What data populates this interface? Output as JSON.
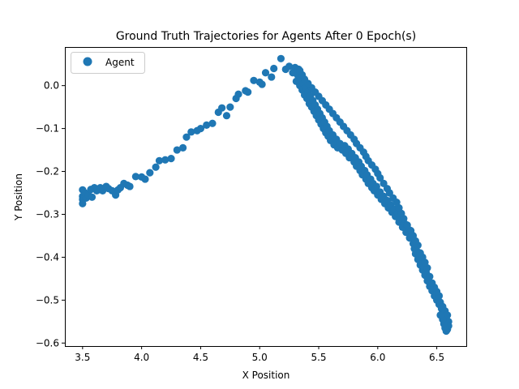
{
  "chart_data": {
    "type": "scatter",
    "title": "Ground Truth Trajectories for Agents After 0 Epoch(s)",
    "xlabel": "X Position",
    "ylabel": "Y Position",
    "xlim": [
      3.35,
      6.75
    ],
    "ylim": [
      -0.607,
      0.09
    ],
    "xticks": [
      3.5,
      4.0,
      4.5,
      5.0,
      5.5,
      6.0,
      6.5
    ],
    "xtick_labels": [
      "3.5",
      "4.0",
      "4.5",
      "5.0",
      "5.5",
      "6.0",
      "6.5"
    ],
    "yticks": [
      0.0,
      -0.1,
      -0.2,
      -0.3,
      -0.4,
      -0.5,
      -0.6
    ],
    "ytick_labels": [
      "0.0",
      "−0.1",
      "−0.2",
      "−0.3",
      "−0.4",
      "−0.5",
      "−0.6"
    ],
    "grid": false,
    "legend": {
      "position": "top-left",
      "entries": [
        "Agent"
      ]
    },
    "series": [
      {
        "name": "Agent",
        "color": "#1f77b4",
        "marker": "circle",
        "points": [
          [
            3.5,
            -0.243
          ],
          [
            3.5,
            -0.258
          ],
          [
            3.5,
            -0.265
          ],
          [
            3.5,
            -0.275
          ],
          [
            3.52,
            -0.25
          ],
          [
            3.53,
            -0.262
          ],
          [
            3.55,
            -0.255
          ],
          [
            3.57,
            -0.242
          ],
          [
            3.58,
            -0.26
          ],
          [
            3.6,
            -0.238
          ],
          [
            3.62,
            -0.245
          ],
          [
            3.65,
            -0.238
          ],
          [
            3.67,
            -0.245
          ],
          [
            3.7,
            -0.235
          ],
          [
            3.72,
            -0.24
          ],
          [
            3.75,
            -0.245
          ],
          [
            3.78,
            -0.255
          ],
          [
            3.8,
            -0.243
          ],
          [
            3.82,
            -0.238
          ],
          [
            3.85,
            -0.228
          ],
          [
            3.88,
            -0.232
          ],
          [
            3.9,
            -0.235
          ],
          [
            3.95,
            -0.212
          ],
          [
            4.0,
            -0.213
          ],
          [
            4.03,
            -0.218
          ],
          [
            4.07,
            -0.203
          ],
          [
            4.12,
            -0.19
          ],
          [
            4.15,
            -0.175
          ],
          [
            4.2,
            -0.173
          ],
          [
            4.25,
            -0.17
          ],
          [
            4.3,
            -0.15
          ],
          [
            4.35,
            -0.145
          ],
          [
            4.38,
            -0.12
          ],
          [
            4.42,
            -0.108
          ],
          [
            4.47,
            -0.105
          ],
          [
            4.5,
            -0.1
          ],
          [
            4.55,
            -0.092
          ],
          [
            4.6,
            -0.088
          ],
          [
            4.65,
            -0.062
          ],
          [
            4.68,
            -0.052
          ],
          [
            4.72,
            -0.07
          ],
          [
            4.75,
            -0.05
          ],
          [
            4.8,
            -0.03
          ],
          [
            4.82,
            -0.02
          ],
          [
            4.88,
            -0.012
          ],
          [
            4.9,
            -0.015
          ],
          [
            4.95,
            0.012
          ],
          [
            5.0,
            0.008
          ],
          [
            5.02,
            0.003
          ],
          [
            5.05,
            0.03
          ],
          [
            5.1,
            0.02
          ],
          [
            5.12,
            0.04
          ],
          [
            5.18,
            0.063
          ],
          [
            5.22,
            0.038
          ],
          [
            5.25,
            0.045
          ],
          [
            5.28,
            0.03
          ],
          [
            5.3,
            0.042
          ],
          [
            5.31,
            0.01
          ],
          [
            5.32,
            0.025
          ],
          [
            5.33,
            0.038
          ],
          [
            5.34,
            0.0
          ],
          [
            5.35,
            0.015
          ],
          [
            5.36,
            -0.01
          ],
          [
            5.37,
            0.005
          ],
          [
            5.38,
            -0.022
          ],
          [
            5.39,
            -0.005
          ],
          [
            5.4,
            -0.03
          ],
          [
            5.41,
            -0.015
          ],
          [
            5.42,
            -0.042
          ],
          [
            5.43,
            -0.025
          ],
          [
            5.44,
            -0.05
          ],
          [
            5.45,
            -0.035
          ],
          [
            5.46,
            -0.06
          ],
          [
            5.47,
            -0.045
          ],
          [
            5.48,
            -0.07
          ],
          [
            5.49,
            -0.055
          ],
          [
            5.5,
            -0.08
          ],
          [
            5.51,
            -0.065
          ],
          [
            5.52,
            -0.09
          ],
          [
            5.53,
            -0.075
          ],
          [
            5.54,
            -0.1
          ],
          [
            5.55,
            -0.085
          ],
          [
            5.56,
            -0.11
          ],
          [
            5.57,
            -0.095
          ],
          [
            5.58,
            -0.118
          ],
          [
            5.59,
            -0.105
          ],
          [
            5.6,
            -0.128
          ],
          [
            5.62,
            -0.115
          ],
          [
            5.63,
            -0.138
          ],
          [
            5.65,
            -0.125
          ],
          [
            5.66,
            -0.145
          ],
          [
            5.68,
            -0.135
          ],
          [
            5.7,
            -0.15
          ],
          [
            5.72,
            -0.14
          ],
          [
            5.73,
            -0.158
          ],
          [
            5.75,
            -0.148
          ],
          [
            5.76,
            -0.168
          ],
          [
            5.78,
            -0.158
          ],
          [
            5.8,
            -0.178
          ],
          [
            5.81,
            -0.168
          ],
          [
            5.82,
            -0.188
          ],
          [
            5.84,
            -0.178
          ],
          [
            5.85,
            -0.198
          ],
          [
            5.86,
            -0.188
          ],
          [
            5.87,
            -0.208
          ],
          [
            5.89,
            -0.198
          ],
          [
            5.9,
            -0.218
          ],
          [
            5.91,
            -0.208
          ],
          [
            5.92,
            -0.228
          ],
          [
            5.94,
            -0.218
          ],
          [
            5.95,
            -0.238
          ],
          [
            5.96,
            -0.228
          ],
          [
            5.97,
            -0.245
          ],
          [
            5.99,
            -0.235
          ],
          [
            6.0,
            -0.255
          ],
          [
            6.02,
            -0.248
          ],
          [
            6.03,
            -0.265
          ],
          [
            6.05,
            -0.258
          ],
          [
            6.06,
            -0.275
          ],
          [
            6.08,
            -0.268
          ],
          [
            6.09,
            -0.285
          ],
          [
            6.11,
            -0.278
          ],
          [
            6.12,
            -0.295
          ],
          [
            6.14,
            -0.288
          ],
          [
            6.15,
            -0.305
          ],
          [
            6.17,
            -0.298
          ],
          [
            6.18,
            -0.318
          ],
          [
            6.2,
            -0.31
          ],
          [
            6.21,
            -0.33
          ],
          [
            6.23,
            -0.322
          ],
          [
            6.24,
            -0.342
          ],
          [
            6.26,
            -0.335
          ],
          [
            6.27,
            -0.355
          ],
          [
            6.29,
            -0.348
          ],
          [
            6.3,
            -0.368
          ],
          [
            6.31,
            -0.38
          ],
          [
            6.32,
            -0.392
          ],
          [
            6.33,
            -0.385
          ],
          [
            6.34,
            -0.405
          ],
          [
            6.35,
            -0.398
          ],
          [
            6.36,
            -0.418
          ],
          [
            6.37,
            -0.41
          ],
          [
            6.38,
            -0.43
          ],
          [
            6.39,
            -0.422
          ],
          [
            6.4,
            -0.442
          ],
          [
            6.41,
            -0.435
          ],
          [
            6.42,
            -0.455
          ],
          [
            6.43,
            -0.448
          ],
          [
            6.44,
            -0.468
          ],
          [
            6.45,
            -0.46
          ],
          [
            6.46,
            -0.478
          ],
          [
            6.47,
            -0.472
          ],
          [
            6.48,
            -0.49
          ],
          [
            6.49,
            -0.485
          ],
          [
            6.5,
            -0.5
          ],
          [
            6.51,
            -0.495
          ],
          [
            6.52,
            -0.51
          ],
          [
            6.53,
            -0.505
          ],
          [
            6.54,
            -0.52
          ],
          [
            6.55,
            -0.515
          ],
          [
            6.56,
            -0.53
          ],
          [
            6.57,
            -0.525
          ],
          [
            6.58,
            -0.54
          ],
          [
            6.59,
            -0.535
          ],
          [
            6.6,
            -0.55
          ],
          [
            6.6,
            -0.56
          ],
          [
            6.59,
            -0.568
          ],
          [
            6.58,
            -0.572
          ],
          [
            6.57,
            -0.565
          ],
          [
            6.56,
            -0.555
          ],
          [
            6.55,
            -0.545
          ],
          [
            6.53,
            -0.535
          ],
          [
            6.52,
            -0.49
          ],
          [
            6.5,
            -0.48
          ],
          [
            6.48,
            -0.47
          ],
          [
            6.46,
            -0.46
          ],
          [
            6.44,
            -0.445
          ],
          [
            6.42,
            -0.425
          ],
          [
            6.4,
            -0.412
          ],
          [
            6.38,
            -0.4
          ],
          [
            6.36,
            -0.39
          ],
          [
            6.34,
            -0.372
          ],
          [
            6.32,
            -0.362
          ],
          [
            6.3,
            -0.35
          ],
          [
            6.28,
            -0.338
          ],
          [
            6.25,
            -0.325
          ],
          [
            6.22,
            -0.31
          ],
          [
            6.2,
            -0.298
          ],
          [
            6.18,
            -0.285
          ],
          [
            6.16,
            -0.272
          ],
          [
            6.13,
            -0.262
          ],
          [
            6.1,
            -0.25
          ],
          [
            6.08,
            -0.24
          ],
          [
            6.05,
            -0.228
          ],
          [
            6.02,
            -0.215
          ],
          [
            6.0,
            -0.205
          ],
          [
            5.98,
            -0.195
          ],
          [
            5.95,
            -0.185
          ],
          [
            5.92,
            -0.175
          ],
          [
            5.9,
            -0.165
          ],
          [
            5.88,
            -0.155
          ],
          [
            5.85,
            -0.145
          ],
          [
            5.82,
            -0.135
          ],
          [
            5.8,
            -0.125
          ],
          [
            5.77,
            -0.115
          ],
          [
            5.74,
            -0.105
          ],
          [
            5.71,
            -0.095
          ],
          [
            5.68,
            -0.085
          ],
          [
            5.65,
            -0.075
          ],
          [
            5.62,
            -0.065
          ],
          [
            5.59,
            -0.055
          ],
          [
            5.56,
            -0.045
          ],
          [
            5.53,
            -0.035
          ],
          [
            5.5,
            -0.025
          ],
          [
            5.47,
            -0.015
          ],
          [
            5.44,
            -0.005
          ],
          [
            5.41,
            0.005
          ],
          [
            5.38,
            0.015
          ],
          [
            5.36,
            0.025
          ],
          [
            5.34,
            0.035
          ]
        ]
      }
    ]
  }
}
